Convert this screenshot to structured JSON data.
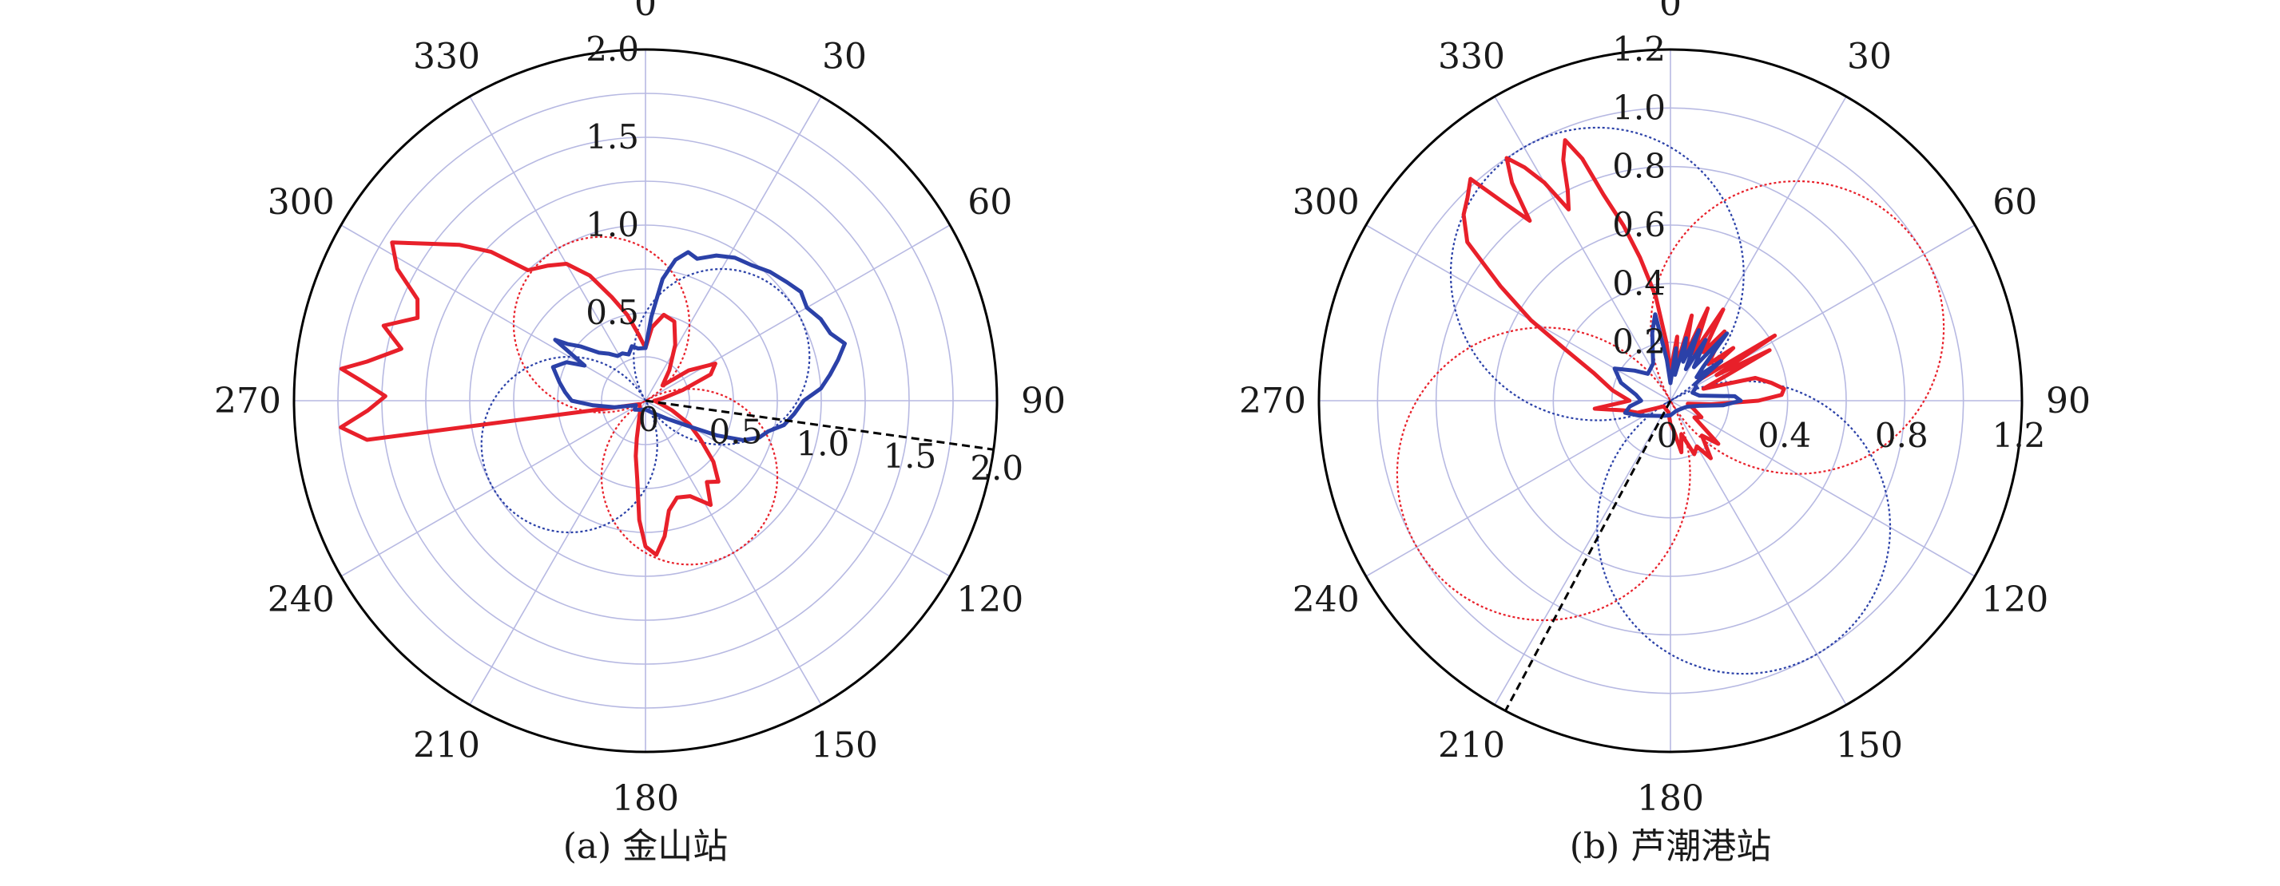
{
  "colors": {
    "red": "#e8202a",
    "blue": "#2b41a8",
    "grid": "#b7b9e2",
    "dashed_line": "#000000"
  },
  "chart_data": [
    {
      "type": "polar-line",
      "caption": "(a) 金山站",
      "rmax": 2.0,
      "radial_ticks": [
        "0",
        "0.5",
        "1.0",
        "1.5",
        "2.0"
      ],
      "radial_tick_values": [
        0,
        0.5,
        1.0,
        1.5,
        2.0
      ],
      "angle_ticks": [
        "0",
        "30",
        "60",
        "90",
        "120",
        "150",
        "180",
        "210",
        "240",
        "270",
        "300",
        "330"
      ],
      "angle_tick_values": [
        0,
        30,
        60,
        90,
        120,
        150,
        180,
        210,
        240,
        270,
        300,
        330
      ],
      "angle_convention": "clockwise from top (0 at north)",
      "reference_line_angle_deg": 98,
      "series": [
        {
          "color": "red",
          "points": [
            [
              0,
              0.3
            ],
            [
              5,
              0.42
            ],
            [
              12,
              0.5
            ],
            [
              20,
              0.48
            ],
            [
              28,
              0.36
            ],
            [
              38,
              0.22
            ],
            [
              48,
              0.13
            ],
            [
              55,
              0.3
            ],
            [
              62,
              0.45
            ],
            [
              68,
              0.4
            ],
            [
              74,
              0.22
            ],
            [
              82,
              0.1
            ],
            [
              90,
              0.05
            ],
            [
              100,
              0.08
            ],
            [
              110,
              0.16
            ],
            [
              118,
              0.28
            ],
            [
              125,
              0.38
            ],
            [
              132,
              0.52
            ],
            [
              138,
              0.62
            ],
            [
              143,
              0.58
            ],
            [
              148,
              0.7
            ],
            [
              155,
              0.6
            ],
            [
              162,
              0.58
            ],
            [
              168,
              0.64
            ],
            [
              172,
              0.78
            ],
            [
              176,
              0.88
            ],
            [
              180,
              0.83
            ],
            [
              183,
              0.68
            ],
            [
              186,
              0.45
            ],
            [
              190,
              0.32
            ],
            [
              193,
              0.22
            ],
            [
              198,
              0.12
            ],
            [
              210,
              0.06
            ],
            [
              240,
              0.04
            ],
            [
              262,
              1.6
            ],
            [
              265,
              1.74
            ],
            [
              268,
              1.58
            ],
            [
              271,
              1.48
            ],
            [
              274,
              1.62
            ],
            [
              276,
              1.74
            ],
            [
              278,
              1.6
            ],
            [
              282,
              1.42
            ],
            [
              286,
              1.55
            ],
            [
              290,
              1.38
            ],
            [
              294,
              1.42
            ],
            [
              298,
              1.6
            ],
            [
              302,
              1.7
            ],
            [
              306,
              1.52
            ],
            [
              310,
              1.38
            ],
            [
              314,
              1.22
            ],
            [
              318,
              1.0
            ],
            [
              324,
              0.95
            ],
            [
              330,
              0.9
            ],
            [
              336,
              0.78
            ],
            [
              342,
              0.62
            ],
            [
              348,
              0.5
            ],
            [
              354,
              0.38
            ],
            [
              360,
              0.3
            ]
          ]
        },
        {
          "color": "blue",
          "points": [
            [
              0,
              0.3
            ],
            [
              4,
              0.48
            ],
            [
              8,
              0.7
            ],
            [
              12,
              0.82
            ],
            [
              16,
              0.88
            ],
            [
              20,
              0.86
            ],
            [
              26,
              0.92
            ],
            [
              32,
              0.96
            ],
            [
              38,
              0.98
            ],
            [
              44,
              1.02
            ],
            [
              50,
              1.05
            ],
            [
              55,
              1.08
            ],
            [
              60,
              1.06
            ],
            [
              65,
              1.1
            ],
            [
              70,
              1.12
            ],
            [
              74,
              1.18
            ],
            [
              78,
              1.12
            ],
            [
              82,
              1.06
            ],
            [
              86,
              1.0
            ],
            [
              90,
              0.9
            ],
            [
              95,
              0.85
            ],
            [
              100,
              0.8
            ],
            [
              104,
              0.72
            ],
            [
              108,
              0.68
            ],
            [
              112,
              0.6
            ],
            [
              116,
              0.45
            ],
            [
              120,
              0.3
            ],
            [
              130,
              0.16
            ],
            [
              150,
              0.08
            ],
            [
              180,
              0.05
            ],
            [
              210,
              0.06
            ],
            [
              230,
              0.08
            ],
            [
              245,
              0.06
            ],
            [
              258,
              0.18
            ],
            [
              265,
              0.3
            ],
            [
              270,
              0.42
            ],
            [
              276,
              0.46
            ],
            [
              282,
              0.5
            ],
            [
              290,
              0.56
            ],
            [
              296,
              0.5
            ],
            [
              300,
              0.4
            ],
            [
              304,
              0.62
            ],
            [
              306,
              0.55
            ],
            [
              310,
              0.48
            ],
            [
              316,
              0.38
            ],
            [
              322,
              0.34
            ],
            [
              328,
              0.3
            ],
            [
              334,
              0.3
            ],
            [
              340,
              0.28
            ],
            [
              346,
              0.32
            ],
            [
              352,
              0.3
            ],
            [
              360,
              0.3
            ]
          ]
        }
      ],
      "dotted_circles": [
        {
          "color": "red",
          "direction_deg": 330,
          "diameter": 1.0
        },
        {
          "color": "red",
          "direction_deg": 150,
          "diameter": 1.0
        },
        {
          "color": "blue",
          "direction_deg": 60,
          "diameter": 1.0
        },
        {
          "color": "blue",
          "direction_deg": 240,
          "diameter": 1.0
        }
      ]
    },
    {
      "type": "polar-line",
      "caption": "(b) 芦潮港站",
      "rmax": 1.2,
      "radial_ticks": [
        "0.2",
        "0.4",
        "0.6",
        "0.8",
        "1.0",
        "1.2"
      ],
      "radial_tick_values": [
        0.2,
        0.4,
        0.6,
        0.8,
        1.0,
        1.2
      ],
      "horizontal_ticks": [
        "0",
        "0.4",
        "0.8",
        "1.2"
      ],
      "horizontal_tick_values": [
        0,
        0.4,
        0.8,
        1.2
      ],
      "angle_ticks": [
        "0",
        "30",
        "60",
        "90",
        "120",
        "150",
        "180",
        "210",
        "240",
        "270",
        "300",
        "330"
      ],
      "angle_tick_values": [
        0,
        30,
        60,
        90,
        120,
        150,
        180,
        210,
        240,
        270,
        300,
        330
      ],
      "angle_convention": "clockwise from top (0 at north)",
      "reference_line_angle_deg": 208,
      "series": [
        {
          "color": "red",
          "points": [
            [
              0,
              0.1
            ],
            [
              6,
              0.22
            ],
            [
              10,
              0.12
            ],
            [
              14,
              0.3
            ],
            [
              18,
              0.16
            ],
            [
              22,
              0.34
            ],
            [
              26,
              0.18
            ],
            [
              30,
              0.36
            ],
            [
              34,
              0.2
            ],
            [
              38,
              0.3
            ],
            [
              42,
              0.22
            ],
            [
              46,
              0.18
            ],
            [
              50,
              0.28
            ],
            [
              54,
              0.12
            ],
            [
              58,
              0.42
            ],
            [
              61,
              0.18
            ],
            [
              63,
              0.38
            ],
            [
              66,
              0.2
            ],
            [
              70,
              0.12
            ],
            [
              75,
              0.3
            ],
            [
              80,
              0.35
            ],
            [
              84,
              0.39
            ],
            [
              87,
              0.38
            ],
            [
              90,
              0.3
            ],
            [
              95,
              0.14
            ],
            [
              100,
              0.06
            ],
            [
              108,
              0.08
            ],
            [
              118,
              0.12
            ],
            [
              125,
              0.1
            ],
            [
              132,
              0.22
            ],
            [
              138,
              0.16
            ],
            [
              145,
              0.24
            ],
            [
              150,
              0.18
            ],
            [
              156,
              0.2
            ],
            [
              162,
              0.12
            ],
            [
              168,
              0.18
            ],
            [
              174,
              0.1
            ],
            [
              180,
              0.08
            ],
            [
              190,
              0.04
            ],
            [
              230,
              0.03
            ],
            [
              250,
              0.12
            ],
            [
              258,
              0.16
            ],
            [
              264,
              0.26
            ],
            [
              270,
              0.14
            ],
            [
              280,
              0.2
            ],
            [
              290,
              0.28
            ],
            [
              296,
              0.4
            ],
            [
              300,
              0.55
            ],
            [
              304,
              0.7
            ],
            [
              308,
              0.88
            ],
            [
              312,
              0.95
            ],
            [
              315,
              0.98
            ],
            [
              318,
              1.02
            ],
            [
              320,
              0.88
            ],
            [
              322,
              0.78
            ],
            [
              324,
              0.92
            ],
            [
              326,
              1.0
            ],
            [
              328,
              0.94
            ],
            [
              330,
              0.86
            ],
            [
              332,
              0.74
            ],
            [
              334,
              0.8
            ],
            [
              336,
              0.9
            ],
            [
              338,
              0.96
            ],
            [
              340,
              0.88
            ],
            [
              342,
              0.74
            ],
            [
              345,
              0.62
            ],
            [
              348,
              0.5
            ],
            [
              352,
              0.36
            ],
            [
              356,
              0.2
            ],
            [
              360,
              0.1
            ]
          ]
        },
        {
          "color": "blue",
          "points": [
            [
              0,
              0.06
            ],
            [
              6,
              0.18
            ],
            [
              10,
              0.09
            ],
            [
              14,
              0.22
            ],
            [
              18,
              0.14
            ],
            [
              22,
              0.26
            ],
            [
              26,
              0.12
            ],
            [
              30,
              0.24
            ],
            [
              35,
              0.14
            ],
            [
              40,
              0.3
            ],
            [
              44,
              0.16
            ],
            [
              48,
              0.12
            ],
            [
              52,
              0.22
            ],
            [
              56,
              0.1
            ],
            [
              62,
              0.1
            ],
            [
              70,
              0.08
            ],
            [
              80,
              0.1
            ],
            [
              86,
              0.22
            ],
            [
              90,
              0.24
            ],
            [
              95,
              0.18
            ],
            [
              100,
              0.1
            ],
            [
              110,
              0.06
            ],
            [
              120,
              0.05
            ],
            [
              150,
              0.04
            ],
            [
              180,
              0.05
            ],
            [
              210,
              0.06
            ],
            [
              230,
              0.08
            ],
            [
              245,
              0.12
            ],
            [
              255,
              0.16
            ],
            [
              262,
              0.14
            ],
            [
              270,
              0.1
            ],
            [
              280,
              0.12
            ],
            [
              290,
              0.18
            ],
            [
              300,
              0.22
            ],
            [
              310,
              0.16
            ],
            [
              320,
              0.12
            ],
            [
              335,
              0.14
            ],
            [
              345,
              0.24
            ],
            [
              350,
              0.3
            ],
            [
              355,
              0.14
            ],
            [
              360,
              0.06
            ]
          ]
        }
      ],
      "dotted_circles": [
        {
          "color": "blue",
          "direction_deg": 330,
          "diameter": 1.0
        },
        {
          "color": "red",
          "direction_deg": 60,
          "diameter": 1.0
        },
        {
          "color": "red",
          "direction_deg": 240,
          "diameter": 1.0
        },
        {
          "color": "blue",
          "direction_deg": 150,
          "diameter": 1.0
        }
      ]
    }
  ]
}
